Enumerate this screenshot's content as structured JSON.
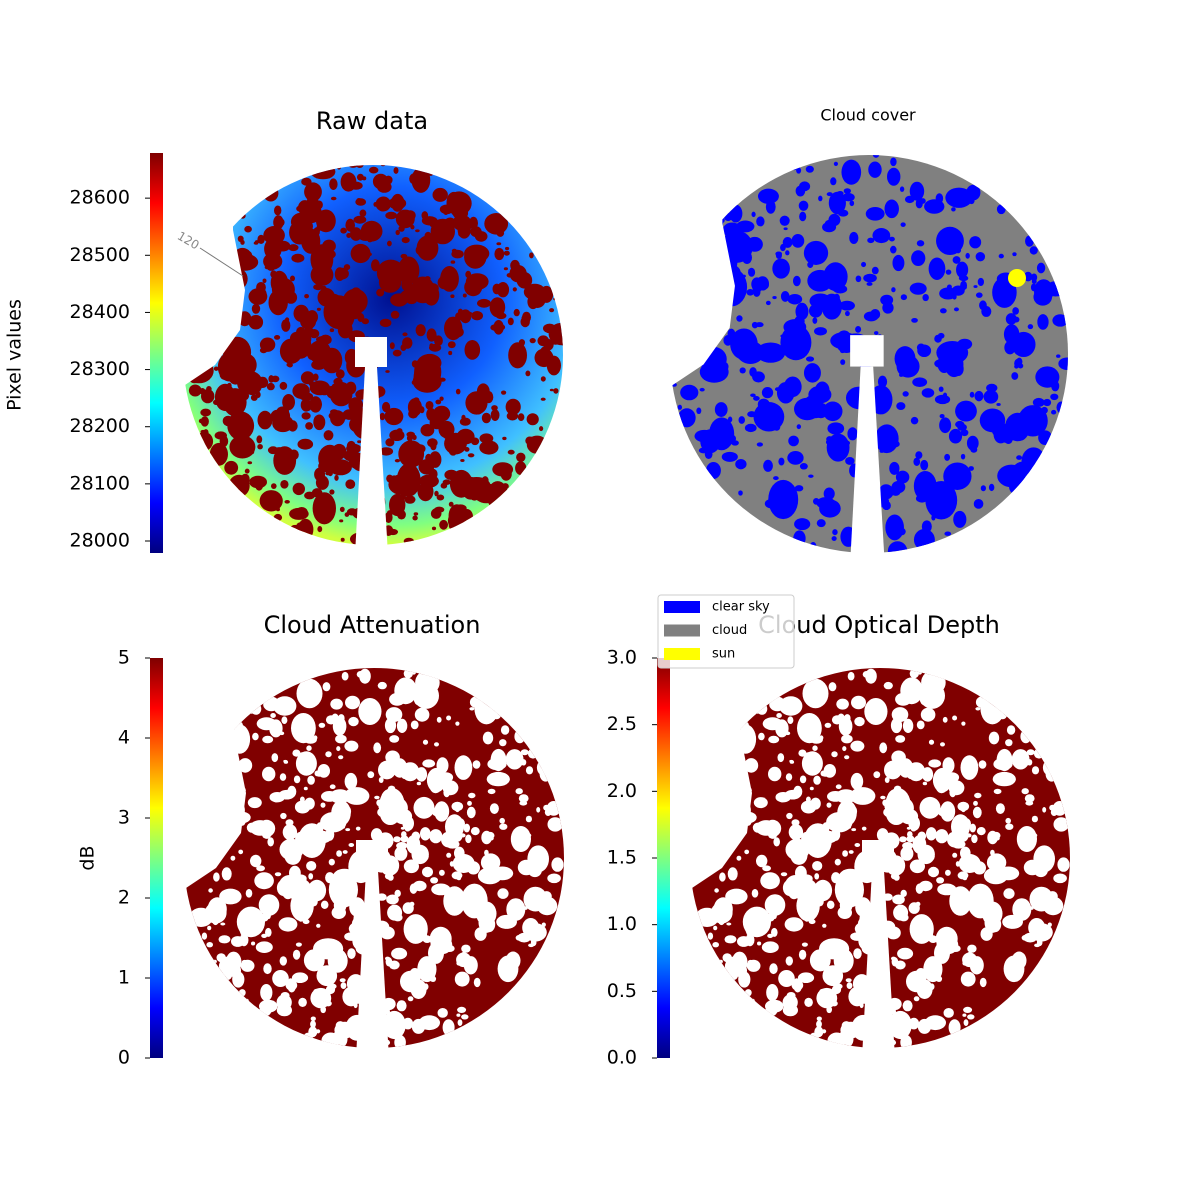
{
  "chart_data": [
    {
      "type": "image",
      "title": "Raw data",
      "colormap": "jet",
      "colorbar_label": "Pixel values",
      "clim": [
        27979,
        28679
      ],
      "cticks": [
        28000,
        28100,
        28200,
        28300,
        28400,
        28500,
        28600
      ],
      "annotations": [
        "120"
      ]
    },
    {
      "type": "mask",
      "title": "Cloud cover",
      "legend": [
        {
          "name": "clear sky",
          "color": "#0000ff"
        },
        {
          "name": "cloud",
          "color": "#808080"
        },
        {
          "name": "sun",
          "color": "#ffff00"
        }
      ],
      "legend_loc": "lower left"
    },
    {
      "type": "image",
      "title": "Cloud Attenuation",
      "colormap": "jet",
      "colorbar_label": "dB",
      "clim": [
        0,
        5
      ],
      "cticks": [
        0,
        1,
        2,
        3,
        4,
        5
      ]
    },
    {
      "type": "image",
      "title": "Cloud Optical Depth",
      "colormap": "jet",
      "clim": [
        0,
        3
      ],
      "cticks": [
        {
          "value": 0,
          "label": "0.0"
        },
        {
          "value": 0.5,
          "label": "0.5"
        },
        {
          "value": 1,
          "label": "1.0"
        },
        {
          "value": 1.5,
          "label": "1.5"
        },
        {
          "value": 2,
          "label": "2.0"
        },
        {
          "value": 2.5,
          "label": "2.5"
        },
        {
          "value": 3,
          "label": "3.0"
        }
      ]
    }
  ]
}
